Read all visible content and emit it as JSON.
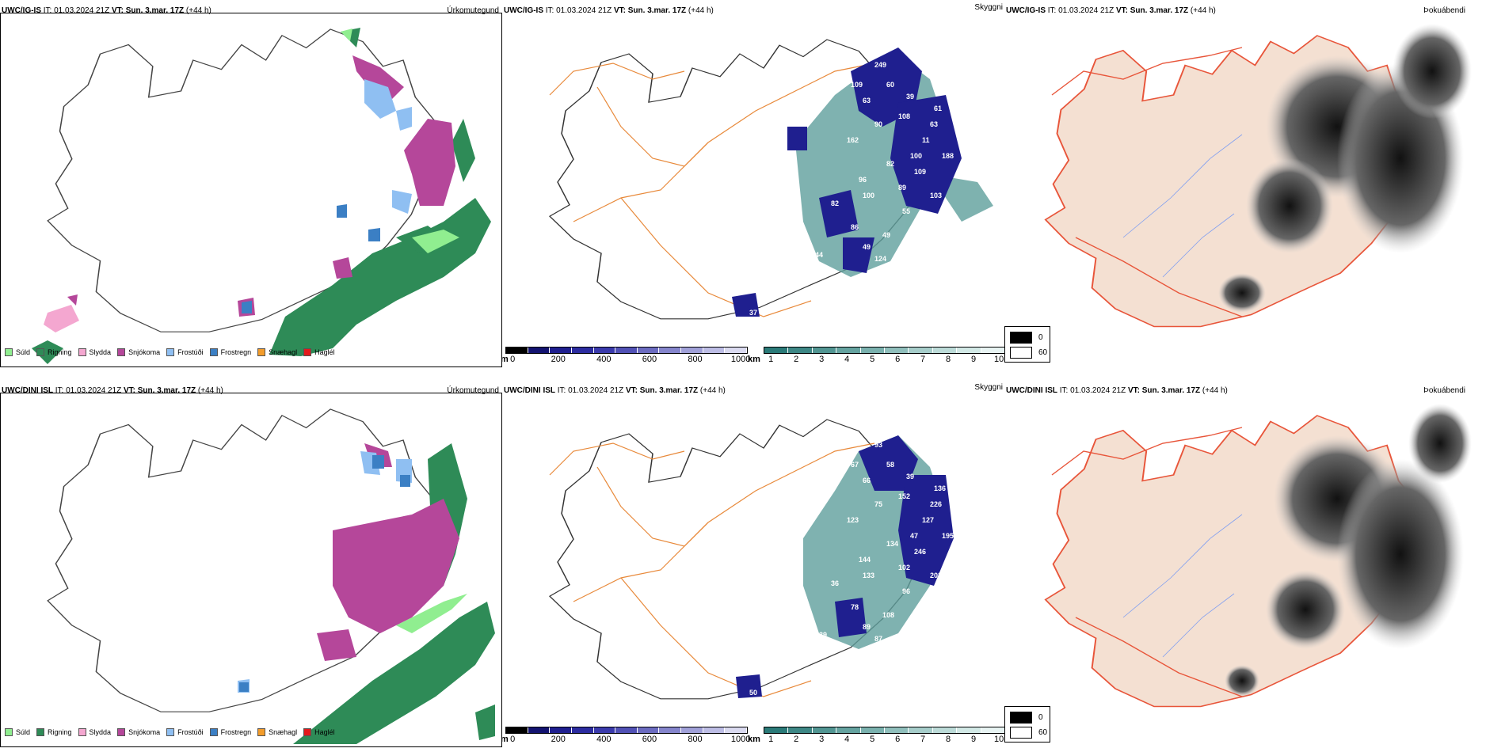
{
  "rows": [
    {
      "model": "UWC/IG-IS",
      "it_label": "IT:",
      "it_value": "01.03.2024 21Z",
      "vt_label": "VT:",
      "vt_value": "Sun. 3.mar. 17Z",
      "lead": "(+44 h)",
      "titles": {
        "precip": "Úrkomutegund",
        "vis": "Skyggni",
        "fog": "Þokuábendi"
      },
      "visibility_labels": [
        "249",
        "109",
        "60",
        "63",
        "39",
        "61",
        "108",
        "63",
        "90",
        "11",
        "162",
        "100",
        "188",
        "82",
        "109",
        "96",
        "89",
        "100",
        "103",
        "82",
        "55",
        "86",
        "49",
        "49",
        "124",
        "44",
        "37"
      ]
    },
    {
      "model": "UWC/DINI ISL",
      "it_label": "IT:",
      "it_value": "01.03.2024 21Z",
      "vt_label": "VT:",
      "vt_value": "Sun. 3.mar. 17Z",
      "lead": "(+44 h)",
      "titles": {
        "precip": "Úrkomutegund",
        "vis": "Skyggni",
        "fog": "Þokuábendi"
      },
      "visibility_labels": [
        "93",
        "67",
        "58",
        "66",
        "39",
        "136",
        "152",
        "226",
        "75",
        "127",
        "123",
        "47",
        "195",
        "134",
        "246",
        "144",
        "102",
        "133",
        "202",
        "36",
        "96",
        "78",
        "108",
        "89",
        "87",
        "139",
        "80",
        "50"
      ]
    }
  ],
  "precip_legend": [
    {
      "label": "Súld",
      "color": "#90ee90"
    },
    {
      "label": "Rigning",
      "color": "#2e8b57"
    },
    {
      "label": "Slydda",
      "color": "#f4a7d0"
    },
    {
      "label": "Snjókoma",
      "color": "#b5479a"
    },
    {
      "label": "Frostúði",
      "color": "#8fbff2"
    },
    {
      "label": "Frostregn",
      "color": "#3b7fc4"
    },
    {
      "label": "Snæhagl",
      "color": "#f39c2b"
    },
    {
      "label": "Haglél",
      "color": "#e31a1c"
    }
  ],
  "ceiling_scale": {
    "unit": "m",
    "ticks": [
      "0",
      "200",
      "400",
      "600",
      "800",
      "1000"
    ],
    "colors": [
      "#000000",
      "#131370",
      "#1f1f8f",
      "#2c2ca0",
      "#3a3aac",
      "#5151b5",
      "#6b6bc0",
      "#8585cc",
      "#a0a0d8",
      "#bdbde5",
      "#dadaf0"
    ]
  },
  "visibility_scale": {
    "unit": "km",
    "ticks": [
      "1",
      "2",
      "3",
      "4",
      "5",
      "6",
      "7",
      "8",
      "9",
      "10"
    ],
    "colors": [
      "#2a7a78",
      "#3d8785",
      "#519592",
      "#65a3a0",
      "#7ab1ae",
      "#90bfbc",
      "#a6cdca",
      "#bcdbd8",
      "#d2e9e6",
      "#e8f4f3"
    ]
  },
  "fog_legend": [
    {
      "label": "0",
      "color": "#000000"
    },
    {
      "label": "60",
      "color": "#ffffff"
    }
  ],
  "colors": {
    "rain": "#2e8b57",
    "drizzle": "#90ee90",
    "snow": "#b5479a",
    "frz_drizzle": "#8fbff2",
    "frz_rain": "#3b7fc4",
    "road": "#e8893a",
    "land_fog": "#f4e0d2",
    "coast_fog": "#e8553a",
    "river": "#7f9ef0"
  }
}
